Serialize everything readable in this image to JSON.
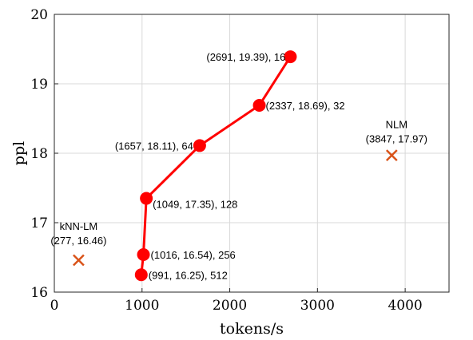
{
  "chart_data": {
    "type": "scatter",
    "xlabel": "tokens/s",
    "ylabel": "ppl",
    "xlim": [
      0,
      4500
    ],
    "ylim": [
      16,
      20
    ],
    "xticks": [
      0,
      1000,
      2000,
      3000,
      4000
    ],
    "yticks": [
      16,
      17,
      18,
      19,
      20
    ],
    "grid": true,
    "series": [
      {
        "style": "line-marker",
        "color": "#ff0000",
        "points": [
          {
            "x": 2691,
            "y": 19.39,
            "label": "(2691, 19.39), 16"
          },
          {
            "x": 2337,
            "y": 18.69,
            "label": "(2337, 18.69), 32"
          },
          {
            "x": 1657,
            "y": 18.11,
            "label": "(1657, 18.11), 64"
          },
          {
            "x": 1049,
            "y": 17.35,
            "label": "(1049, 17.35), 128"
          },
          {
            "x": 1016,
            "y": 16.54,
            "label": "(1016, 16.54), 256"
          },
          {
            "x": 991,
            "y": 16.25,
            "label": "(991, 16.25), 512"
          }
        ]
      },
      {
        "name": "NLM",
        "style": "x-marker",
        "color": "#d95319",
        "points": [
          {
            "x": 3847,
            "y": 17.97,
            "label": "(3847, 17.97)"
          }
        ]
      },
      {
        "name": "kNN-LM",
        "style": "x-marker",
        "color": "#d95319",
        "points": [
          {
            "x": 277,
            "y": 16.46,
            "label": "(277, 16.46)"
          }
        ]
      }
    ]
  }
}
